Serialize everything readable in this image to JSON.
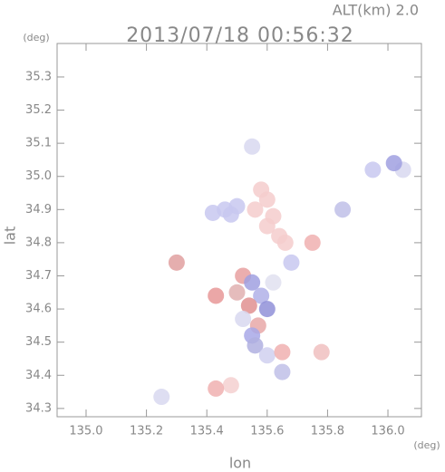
{
  "chart_data": {
    "type": "scatter",
    "title": "2013/07/18 00:56:32",
    "annotation": "ALT(km) 2.0",
    "y_unit": "(deg)",
    "x_unit": "(deg)",
    "x_label": "lon",
    "y_label": "lat",
    "xlim": [
      134.904,
      136.111
    ],
    "ylim": [
      34.275,
      35.401
    ],
    "xticks": [
      {
        "value": 135.0,
        "label": "135.0"
      },
      135.2,
      135.4,
      135.6,
      135.8,
      {
        "value": 136.0,
        "label": "136.0"
      }
    ],
    "yticks": [
      34.3,
      34.4,
      34.5,
      34.6,
      34.7,
      34.8,
      34.9,
      {
        "value": 35.0,
        "label": "35.0"
      },
      35.1,
      35.2,
      35.3
    ],
    "x": [
      135.42,
      135.46,
      135.5,
      135.48,
      135.58,
      135.6,
      135.56,
      135.62,
      135.6,
      135.64,
      135.66,
      135.52,
      135.55,
      135.5,
      135.58,
      135.54,
      135.6,
      135.52,
      135.57,
      135.55,
      135.56,
      135.6,
      135.65,
      135.43,
      135.62,
      135.48,
      135.43,
      135.25,
      135.78,
      135.65,
      135.95,
      136.05,
      136.02,
      135.85,
      135.75,
      135.68,
      135.55,
      135.3
    ],
    "y": [
      34.89,
      34.9,
      34.91,
      34.885,
      34.96,
      34.93,
      34.9,
      34.88,
      34.85,
      34.82,
      34.8,
      34.7,
      34.68,
      34.65,
      34.64,
      34.61,
      34.6,
      34.57,
      34.55,
      34.52,
      34.49,
      34.46,
      34.47,
      34.64,
      34.68,
      34.37,
      34.36,
      34.335,
      34.47,
      34.41,
      35.02,
      35.02,
      35.04,
      34.9,
      34.8,
      34.74,
      35.09,
      34.74
    ],
    "point_colors": [
      "#c8c8f0",
      "#c8c8f0",
      "#c8c8f0",
      "#c8c8f0",
      "#f5cccc",
      "#f5cccc",
      "#f5cccc",
      "#f5cccc",
      "#f5cccc",
      "#f5cccc",
      "#f5cccc",
      "#e8a0a0",
      "#a0a0e0",
      "#e0b0b0",
      "#b0b0e8",
      "#e09090",
      "#9090d8",
      "#d8d8f0",
      "#e8a8a8",
      "#a8a8e8",
      "#b0b0e0",
      "#d0d0f0",
      "#f0b0b0",
      "#e89898",
      "#e0e0f0",
      "#f5d0d0",
      "#f0b0b0",
      "#d8d8f0",
      "#f0c0c0",
      "#c0c0e8",
      "#c8c8f0",
      "#d8d8f0",
      "#a0a0e0",
      "#c0c0e8",
      "#f0b0b0",
      "#c8c8f0",
      "#d8d8f0",
      "#e0a0a0"
    ]
  }
}
